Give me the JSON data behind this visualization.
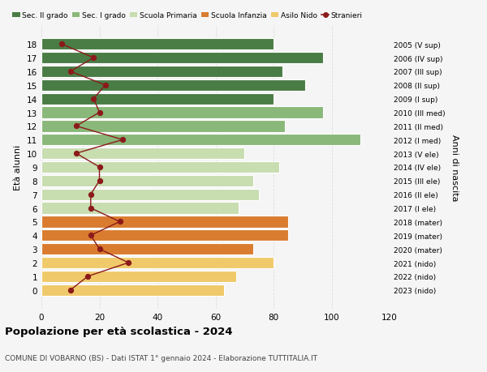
{
  "ages": [
    18,
    17,
    16,
    15,
    14,
    13,
    12,
    11,
    10,
    9,
    8,
    7,
    6,
    5,
    4,
    3,
    2,
    1,
    0
  ],
  "anni_nascita": [
    "2005 (V sup)",
    "2006 (IV sup)",
    "2007 (III sup)",
    "2008 (II sup)",
    "2009 (I sup)",
    "2010 (III med)",
    "2011 (II med)",
    "2012 (I med)",
    "2013 (V ele)",
    "2014 (IV ele)",
    "2015 (III ele)",
    "2016 (II ele)",
    "2017 (I ele)",
    "2018 (mater)",
    "2019 (mater)",
    "2020 (mater)",
    "2021 (nido)",
    "2022 (nido)",
    "2023 (nido)"
  ],
  "bar_values": [
    80,
    97,
    83,
    91,
    80,
    97,
    84,
    110,
    70,
    82,
    73,
    75,
    68,
    85,
    85,
    73,
    80,
    67,
    63
  ],
  "bar_colors": [
    "#4a7c45",
    "#4a7c45",
    "#4a7c45",
    "#4a7c45",
    "#4a7c45",
    "#8ab87a",
    "#8ab87a",
    "#8ab87a",
    "#c8ddb0",
    "#c8ddb0",
    "#c8ddb0",
    "#c8ddb0",
    "#c8ddb0",
    "#d97c30",
    "#d97c30",
    "#d97c30",
    "#f0c96a",
    "#f0c96a",
    "#f0c96a"
  ],
  "stranieri_values": [
    7,
    18,
    10,
    22,
    18,
    20,
    12,
    28,
    12,
    20,
    20,
    17,
    17,
    27,
    17,
    20,
    30,
    16,
    10
  ],
  "stranieri_color": "#8b1a1a",
  "ylabel": "Età alunni",
  "right_ylabel": "Anni di nascita",
  "xlim": [
    0,
    120
  ],
  "xticks": [
    0,
    20,
    40,
    60,
    80,
    100,
    120
  ],
  "legend_labels": [
    "Sec. II grado",
    "Sec. I grado",
    "Scuola Primaria",
    "Scuola Infanzia",
    "Asilo Nido",
    "Stranieri"
  ],
  "legend_colors": [
    "#4a7c45",
    "#8ab87a",
    "#c8ddb0",
    "#d97c30",
    "#f0c96a",
    "#8b1a1a"
  ],
  "title": "Popolazione per età scolastica - 2024",
  "subtitle": "COMUNE DI VOBARNO (BS) - Dati ISTAT 1° gennaio 2024 - Elaborazione TUTTITALIA.IT",
  "bg_color": "#f5f5f5",
  "grid_color": "#dddddd"
}
